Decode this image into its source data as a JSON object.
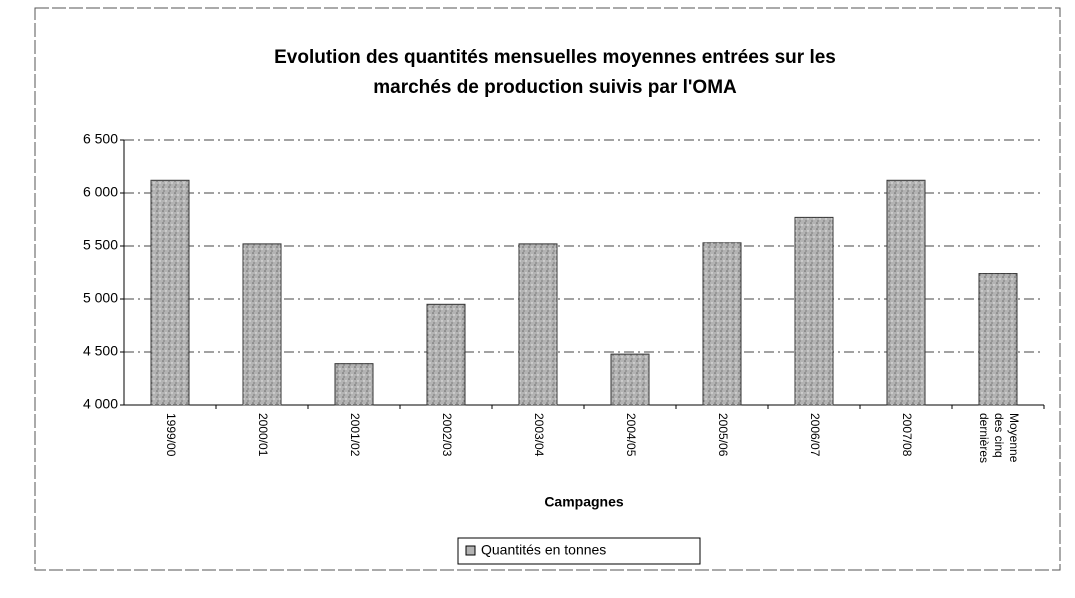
{
  "chart_data": {
    "type": "bar",
    "title": [
      "Evolution des quantités mensuelles moyennes entrées sur les",
      "marchés de production suivis par l'OMA"
    ],
    "x_label": "Campagnes",
    "categories": [
      "1999/00",
      "2000/01",
      "2001/02",
      "2002/03",
      "2003/04",
      "2004/05",
      "2005/06",
      "2006/07",
      "2007/08",
      "Moyenne des cinq dernières"
    ],
    "series": [
      {
        "name": "Quantités en tonnes",
        "color": "#b3b3b3",
        "values": [
          6120,
          5520,
          4390,
          4950,
          5520,
          4480,
          5530,
          5770,
          6120,
          5240
        ]
      }
    ],
    "ylim": [
      4000,
      6500
    ],
    "yticks": [
      {
        "value": 4000,
        "label": "4 000"
      },
      {
        "value": 4500,
        "label": "4 500"
      },
      {
        "value": 5000,
        "label": "5 000"
      },
      {
        "value": 5500,
        "label": "5 500"
      },
      {
        "value": 6000,
        "label": "6 000"
      },
      {
        "value": 6500,
        "label": "6 500"
      }
    ],
    "grid": true
  }
}
